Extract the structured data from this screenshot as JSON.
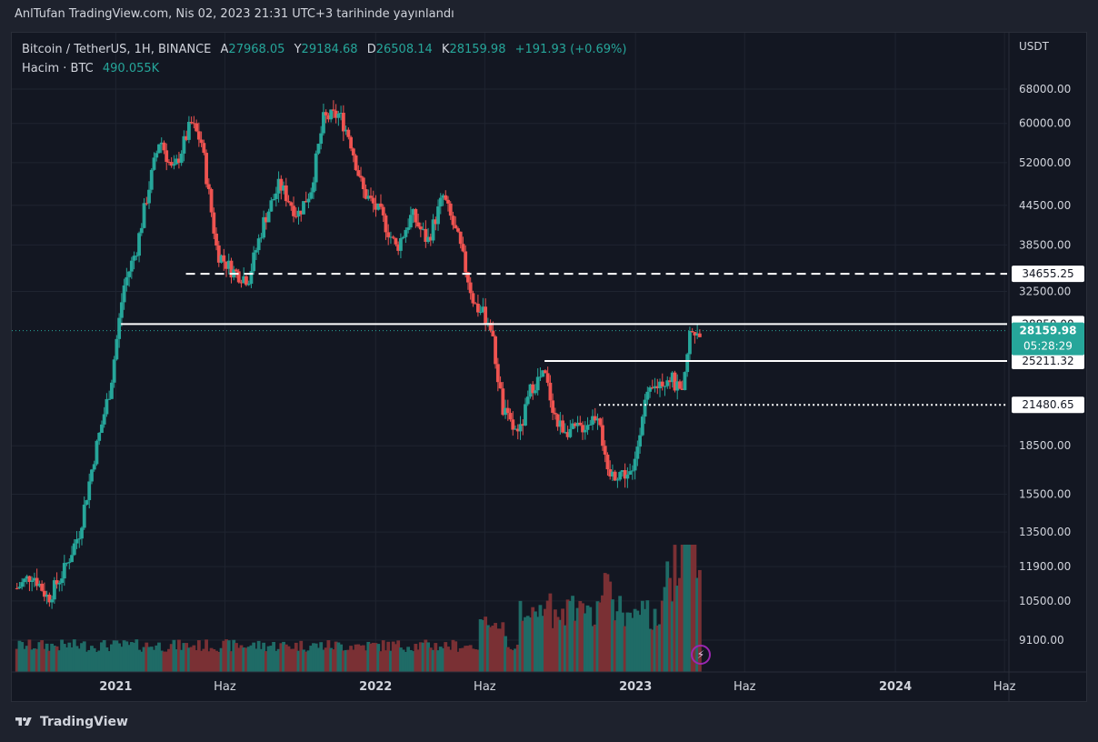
{
  "header": {
    "published": "AnlTufan TradingView.com, Nis 02, 2023 21:31 UTC+3 tarihinde yayınlandı"
  },
  "legend": {
    "symbol": "Bitcoin / TetherUS, 1H, BINANCE",
    "open_label": "A",
    "open": "27968.05",
    "high_label": "Y",
    "high": "29184.68",
    "low_label": "D",
    "low": "26508.14",
    "close_label": "K",
    "close": "28159.98",
    "change": "+191.93 (+0.69%)",
    "volume_label": "Hacim · BTC",
    "volume": "490.055K"
  },
  "footer": {
    "brand": "TradingView"
  },
  "colors": {
    "up": "#26a69a",
    "down": "#ef5350",
    "vol_up": "#1f6b66",
    "vol_down": "#7a3034",
    "bg": "#131722",
    "text": "#d1d4dc",
    "last_price_bg": "#26a69a"
  },
  "icons": {
    "footer_logo": "tradingview-logo-icon",
    "replay": "lightning-icon"
  },
  "chart_data": {
    "type": "candlestick",
    "y_scale": "log",
    "y_unit": "USDT",
    "y_ticks": [
      "68000.00",
      "60000.00",
      "52000.00",
      "44500.00",
      "38500.00",
      "32500.00",
      "18500.00",
      "15500.00",
      "13500.00",
      "11900.00",
      "10500.00",
      "9100.00"
    ],
    "x_ticks": [
      "2021",
      "Haz",
      "2022",
      "Haz",
      "2023",
      "Haz",
      "2024",
      "Haz"
    ],
    "price_labels": [
      {
        "value": 34655.25,
        "text": "34655.25",
        "style": "dashed"
      },
      {
        "value": 28850.0,
        "text": "28850.00",
        "style": "solid"
      },
      {
        "value": 25211.32,
        "text": "25211.32",
        "style": "solid"
      },
      {
        "value": 21480.65,
        "text": "21480.65",
        "style": "dotted"
      }
    ],
    "last_price": {
      "value": 28159.98,
      "text": "28159.98",
      "countdown": "05:28:29"
    },
    "horizontal_lines": [
      {
        "value": 34655.25,
        "from_time": 2021.27,
        "style": "dashed"
      },
      {
        "value": 28850.0,
        "from_time": 2021.02,
        "style": "solid"
      },
      {
        "value": 25211.32,
        "from_time": 2022.65,
        "style": "solid"
      },
      {
        "value": 21480.65,
        "from_time": 2022.86,
        "style": "dotted"
      }
    ],
    "price_anchors": [
      [
        2020.62,
        11000
      ],
      [
        2020.68,
        11600
      ],
      [
        2020.74,
        10600
      ],
      [
        2020.8,
        11700
      ],
      [
        2020.86,
        13500
      ],
      [
        2020.92,
        18000
      ],
      [
        2020.98,
        23000
      ],
      [
        2021.03,
        33000
      ],
      [
        2021.08,
        38000
      ],
      [
        2021.12,
        46000
      ],
      [
        2021.17,
        57000
      ],
      [
        2021.22,
        50000
      ],
      [
        2021.29,
        60000
      ],
      [
        2021.33,
        56000
      ],
      [
        2021.39,
        37500
      ],
      [
        2021.45,
        35000
      ],
      [
        2021.51,
        34000
      ],
      [
        2021.57,
        42000
      ],
      [
        2021.63,
        48000
      ],
      [
        2021.7,
        43000
      ],
      [
        2021.75,
        47000
      ],
      [
        2021.8,
        61000
      ],
      [
        2021.86,
        62000
      ],
      [
        2021.9,
        57000
      ],
      [
        2021.95,
        47000
      ],
      [
        2022.02,
        43000
      ],
      [
        2022.08,
        38000
      ],
      [
        2022.14,
        43000
      ],
      [
        2022.2,
        39000
      ],
      [
        2022.26,
        46000
      ],
      [
        2022.32,
        39000
      ],
      [
        2022.38,
        31000
      ],
      [
        2022.44,
        29000
      ],
      [
        2022.49,
        21000
      ],
      [
        2022.55,
        19000
      ],
      [
        2022.6,
        23000
      ],
      [
        2022.65,
        24000
      ],
      [
        2022.7,
        20000
      ],
      [
        2022.76,
        19500
      ],
      [
        2022.81,
        20000
      ],
      [
        2022.86,
        21000
      ],
      [
        2022.89,
        16500
      ],
      [
        2022.94,
        16800
      ],
      [
        2022.99,
        16600
      ],
      [
        2023.03,
        21500
      ],
      [
        2023.08,
        23000
      ],
      [
        2023.13,
        24000
      ],
      [
        2023.18,
        22000
      ],
      [
        2023.21,
        28000
      ],
      [
        2023.25,
        28160
      ]
    ]
  }
}
